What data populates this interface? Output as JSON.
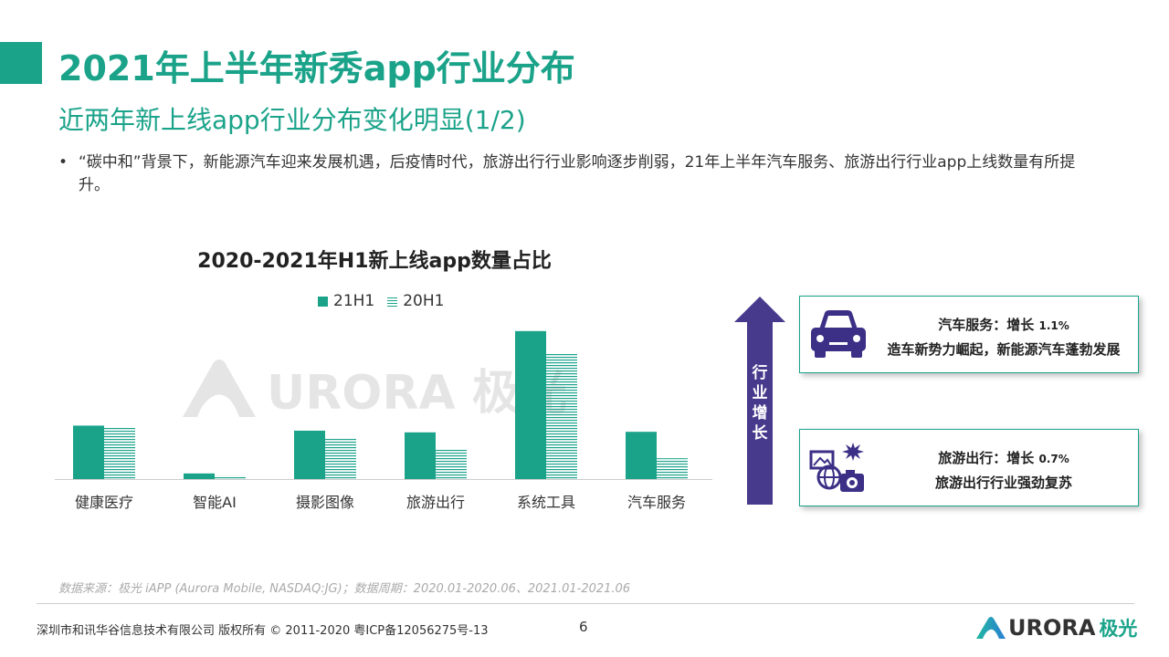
{
  "header": {
    "title": "2021年上半年新秀app行业分布",
    "subtitle": "近两年新上线app行业分布变化明显(1/2)",
    "bullet_marker": "•",
    "bullet_text": "“碳中和”背景下，新能源汽车迎来发展机遇，后疫情时代，旅游出行行业影响逐步削弱，21年上半年汽车服务、旅游出行行业app上线数量有所提升。"
  },
  "watermark": {
    "text": "URORA 极光"
  },
  "colors": {
    "accent": "#1ba38a",
    "arrow": "#473a8d",
    "icon": "#3b2f86"
  },
  "chart_data": {
    "type": "bar",
    "title": "2020-2021年H1新上线app数量占比",
    "categories": [
      "健康医疗",
      "智能AI",
      "摄影图像",
      "旅游出行",
      "系统工具",
      "汽车服务"
    ],
    "series": [
      {
        "name": "21H1",
        "style": "solid",
        "values": [
          9.5,
          1.0,
          8.6,
          8.3,
          26.3,
          8.4
        ]
      },
      {
        "name": "20H1",
        "style": "striped",
        "values": [
          9.2,
          0.6,
          7.3,
          5.4,
          22.4,
          3.7
        ]
      }
    ],
    "xlabel": "",
    "ylabel": "",
    "ylim": [
      0,
      30
    ],
    "legend_position": "top-center",
    "grid": false
  },
  "growth_arrow": {
    "label": "行业增长"
  },
  "cards": [
    {
      "icon": "car-icon",
      "headline": "汽车服务：增长",
      "pct": "1.1%",
      "desc": "造车新势力崛起，新能源汽车蓬勃发展"
    },
    {
      "icon": "travel-icon",
      "headline": "旅游出行：增长",
      "pct": "0.7%",
      "desc": "旅游出行行业强劲复苏"
    }
  ],
  "footer": {
    "source": "数据来源：极光 iAPP (Aurora Mobile, NASDAQ:JG)；数据周期：2020.01-2020.06、2021.01-2021.06",
    "copyright": "深圳市和讯华谷信息技术有限公司  版权所有 © 2011-2020 粤ICP备12056275号-13",
    "page": "6",
    "brand": "URORA",
    "brand_cn": "极光"
  }
}
